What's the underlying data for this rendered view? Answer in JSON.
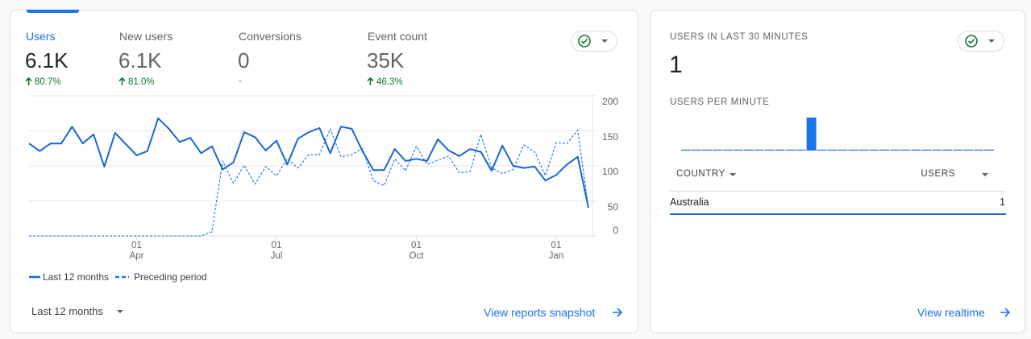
{
  "overview_card": {
    "metrics": [
      {
        "label": "Users",
        "value": "6.1K",
        "change": "80.7%"
      },
      {
        "label": "New users",
        "value": "6.1K",
        "change": "81.0%"
      },
      {
        "label": "Conversions",
        "value": "0",
        "change": "-"
      },
      {
        "label": "Event count",
        "value": "35K",
        "change": "46.3%"
      }
    ],
    "chart": {
      "type": "line",
      "categories": [
        null,
        null,
        null,
        null,
        null,
        null,
        null,
        null,
        null,
        null,
        "01\nApr",
        null,
        null,
        null,
        null,
        null,
        null,
        null,
        null,
        null,
        null,
        null,
        null,
        "01\nJul",
        null,
        null,
        null,
        null,
        null,
        null,
        null,
        null,
        null,
        null,
        null,
        null,
        "01\nOct",
        null,
        null,
        null,
        null,
        null,
        null,
        null,
        null,
        null,
        null,
        null,
        null,
        "01\nJan",
        null,
        null,
        null
      ],
      "series": [
        {
          "name": "Last 12 months",
          "color": "#1967d2",
          "line_style": "solid",
          "values": [
            132,
            121,
            132,
            132,
            156,
            132,
            145,
            99,
            147,
            131,
            115,
            121,
            168,
            153,
            134,
            140,
            118,
            128,
            95,
            105,
            148,
            141,
            122,
            136,
            102,
            139,
            148,
            154,
            118,
            156,
            153,
            121,
            94,
            94,
            124,
            107,
            110,
            107,
            138,
            122,
            114,
            124,
            120,
            93,
            129,
            100,
            97,
            99,
            79,
            87,
            102,
            113,
            40
          ]
        },
        {
          "name": "Preceding period",
          "color": "#1a73e8",
          "line_style": "dashed",
          "values": [
            0,
            0,
            0,
            0,
            0,
            0,
            0,
            0,
            0,
            0,
            0,
            0,
            0,
            0,
            0,
            0,
            0,
            6,
            107,
            75,
            101,
            74,
            99,
            86,
            110,
            97,
            116,
            116,
            153,
            113,
            116,
            125,
            79,
            72,
            110,
            93,
            128,
            102,
            108,
            114,
            90,
            92,
            145,
            97,
            89,
            95,
            130,
            120,
            86,
            133,
            132,
            151,
            40
          ]
        }
      ],
      "ylim": [
        0,
        200
      ],
      "yticks": [
        0,
        50,
        100,
        150,
        200
      ],
      "grid": true
    },
    "date_range": "Last 12 months",
    "link": "View reports snapshot"
  },
  "realtime_card": {
    "title": "USERS IN LAST 30 MINUTES",
    "value": "1",
    "chart": {
      "type": "bar",
      "title": "USERS PER MINUTE",
      "color": "#1a73e8",
      "values": [
        0,
        0,
        0,
        0,
        0,
        0,
        0,
        0,
        0,
        0,
        0,
        0,
        1,
        0,
        0,
        0,
        0,
        0,
        0,
        0,
        0,
        0,
        0,
        0,
        0,
        0,
        0,
        0,
        0,
        0
      ]
    },
    "table": {
      "columns": [
        "COUNTRY",
        "USERS"
      ],
      "rows": [
        [
          "Australia",
          "1"
        ]
      ]
    },
    "link": "View realtime"
  }
}
